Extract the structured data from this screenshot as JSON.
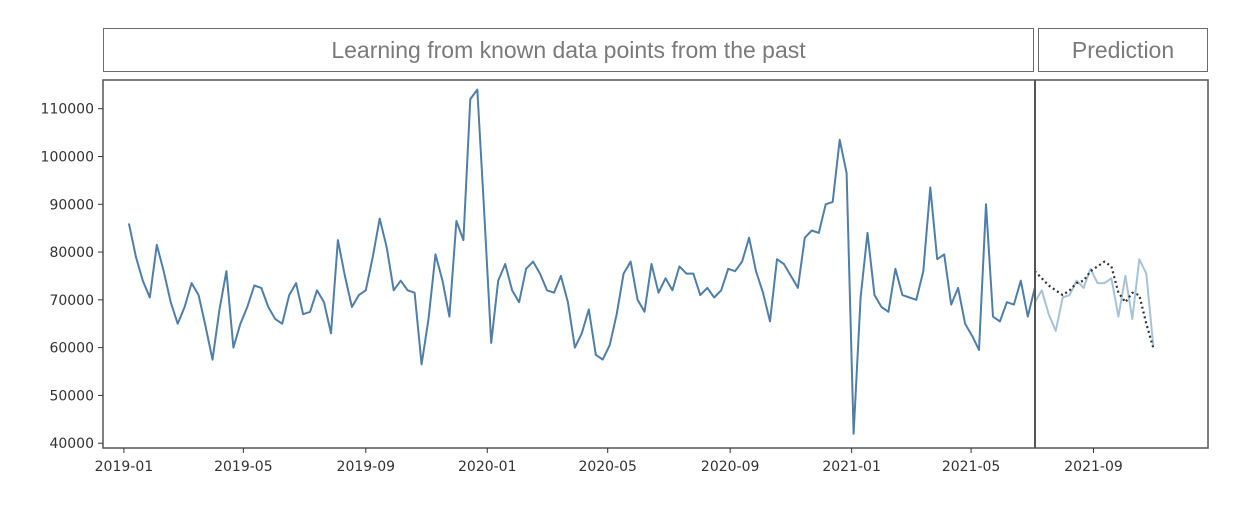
{
  "banners": {
    "learning": "Learning from known data points from the past",
    "prediction": "Prediction"
  },
  "chart_data": {
    "type": "line",
    "title": "",
    "xlabel": "",
    "ylabel": "",
    "ylim": [
      39000,
      116000
    ],
    "xlim": [
      "2018-12-11",
      "2021-12-25"
    ],
    "y_ticks": [
      40000,
      50000,
      60000,
      70000,
      80000,
      90000,
      100000,
      110000
    ],
    "x_ticks": [
      "2019-01",
      "2019-05",
      "2019-09",
      "2020-01",
      "2020-05",
      "2020-09",
      "2021-01",
      "2021-05",
      "2021-09"
    ],
    "prediction_start": "2021-07-01",
    "grid": false,
    "legend": "none",
    "series": [
      {
        "role": "history",
        "color": "#4f7ea8",
        "points": [
          [
            "2019-01-06",
            86000
          ],
          [
            "2019-01-13",
            79000
          ],
          [
            "2019-01-20",
            74000
          ],
          [
            "2019-01-27",
            70500
          ],
          [
            "2019-02-03",
            81500
          ],
          [
            "2019-02-10",
            76000
          ],
          [
            "2019-02-17",
            69500
          ],
          [
            "2019-02-24",
            65000
          ],
          [
            "2019-03-03",
            68500
          ],
          [
            "2019-03-10",
            73500
          ],
          [
            "2019-03-17",
            71000
          ],
          [
            "2019-03-24",
            64500
          ],
          [
            "2019-03-31",
            57500
          ],
          [
            "2019-04-07",
            68000
          ],
          [
            "2019-04-14",
            76000
          ],
          [
            "2019-04-21",
            60000
          ],
          [
            "2019-04-28",
            65000
          ],
          [
            "2019-05-05",
            68500
          ],
          [
            "2019-05-12",
            73000
          ],
          [
            "2019-05-19",
            72500
          ],
          [
            "2019-05-26",
            68500
          ],
          [
            "2019-06-02",
            66000
          ],
          [
            "2019-06-09",
            65000
          ],
          [
            "2019-06-16",
            71000
          ],
          [
            "2019-06-23",
            73500
          ],
          [
            "2019-06-30",
            67000
          ],
          [
            "2019-07-07",
            67500
          ],
          [
            "2019-07-14",
            72000
          ],
          [
            "2019-07-21",
            69500
          ],
          [
            "2019-07-28",
            63000
          ],
          [
            "2019-08-04",
            82500
          ],
          [
            "2019-08-11",
            75000
          ],
          [
            "2019-08-18",
            68500
          ],
          [
            "2019-08-25",
            71000
          ],
          [
            "2019-09-01",
            72000
          ],
          [
            "2019-09-08",
            79000
          ],
          [
            "2019-09-15",
            87000
          ],
          [
            "2019-09-22",
            81000
          ],
          [
            "2019-09-29",
            72000
          ],
          [
            "2019-10-06",
            74000
          ],
          [
            "2019-10-13",
            72000
          ],
          [
            "2019-10-20",
            71500
          ],
          [
            "2019-10-27",
            56500
          ],
          [
            "2019-11-03",
            66000
          ],
          [
            "2019-11-10",
            79500
          ],
          [
            "2019-11-17",
            74000
          ],
          [
            "2019-11-24",
            66500
          ],
          [
            "2019-12-01",
            86500
          ],
          [
            "2019-12-08",
            82500
          ],
          [
            "2019-12-15",
            112000
          ],
          [
            "2019-12-22",
            114000
          ],
          [
            "2019-12-29",
            88000
          ],
          [
            "2020-01-05",
            61000
          ],
          [
            "2020-01-12",
            74000
          ],
          [
            "2020-01-19",
            77500
          ],
          [
            "2020-01-26",
            72000
          ],
          [
            "2020-02-02",
            69500
          ],
          [
            "2020-02-09",
            76500
          ],
          [
            "2020-02-16",
            78000
          ],
          [
            "2020-02-23",
            75500
          ],
          [
            "2020-03-01",
            72000
          ],
          [
            "2020-03-08",
            71500
          ],
          [
            "2020-03-15",
            75000
          ],
          [
            "2020-03-22",
            69500
          ],
          [
            "2020-03-29",
            60000
          ],
          [
            "2020-04-05",
            63000
          ],
          [
            "2020-04-12",
            68000
          ],
          [
            "2020-04-19",
            58500
          ],
          [
            "2020-04-26",
            57500
          ],
          [
            "2020-05-03",
            60500
          ],
          [
            "2020-05-10",
            67000
          ],
          [
            "2020-05-17",
            75500
          ],
          [
            "2020-05-24",
            78000
          ],
          [
            "2020-05-31",
            70000
          ],
          [
            "2020-06-07",
            67500
          ],
          [
            "2020-06-14",
            77500
          ],
          [
            "2020-06-21",
            71500
          ],
          [
            "2020-06-28",
            74500
          ],
          [
            "2020-07-05",
            72000
          ],
          [
            "2020-07-12",
            77000
          ],
          [
            "2020-07-19",
            75500
          ],
          [
            "2020-07-26",
            75500
          ],
          [
            "2020-08-02",
            71000
          ],
          [
            "2020-08-09",
            72500
          ],
          [
            "2020-08-16",
            70500
          ],
          [
            "2020-08-23",
            72000
          ],
          [
            "2020-08-30",
            76500
          ],
          [
            "2020-09-06",
            76000
          ],
          [
            "2020-09-13",
            78000
          ],
          [
            "2020-09-20",
            83000
          ],
          [
            "2020-09-27",
            76000
          ],
          [
            "2020-10-04",
            71500
          ],
          [
            "2020-10-11",
            65500
          ],
          [
            "2020-10-18",
            78500
          ],
          [
            "2020-10-25",
            77500
          ],
          [
            "2020-11-01",
            75000
          ],
          [
            "2020-11-08",
            72500
          ],
          [
            "2020-11-15",
            83000
          ],
          [
            "2020-11-22",
            84500
          ],
          [
            "2020-11-29",
            84000
          ],
          [
            "2020-12-06",
            90000
          ],
          [
            "2020-12-13",
            90500
          ],
          [
            "2020-12-20",
            103500
          ],
          [
            "2020-12-27",
            96500
          ],
          [
            "2021-01-03",
            42000
          ],
          [
            "2021-01-10",
            70500
          ],
          [
            "2021-01-17",
            84000
          ],
          [
            "2021-01-24",
            71000
          ],
          [
            "2021-01-31",
            68500
          ],
          [
            "2021-02-07",
            67500
          ],
          [
            "2021-02-14",
            76500
          ],
          [
            "2021-02-21",
            71000
          ],
          [
            "2021-02-28",
            70500
          ],
          [
            "2021-03-07",
            70000
          ],
          [
            "2021-03-14",
            76000
          ],
          [
            "2021-03-21",
            93500
          ],
          [
            "2021-03-28",
            78500
          ],
          [
            "2021-04-04",
            79500
          ],
          [
            "2021-04-11",
            69000
          ],
          [
            "2021-04-18",
            72500
          ],
          [
            "2021-04-25",
            65000
          ],
          [
            "2021-05-02",
            62500
          ],
          [
            "2021-05-09",
            59500
          ],
          [
            "2021-05-16",
            90000
          ],
          [
            "2021-05-23",
            66500
          ],
          [
            "2021-05-30",
            65500
          ],
          [
            "2021-06-06",
            69500
          ],
          [
            "2021-06-13",
            69000
          ],
          [
            "2021-06-20",
            74000
          ],
          [
            "2021-06-27",
            66500
          ],
          [
            "2021-07-04",
            72500
          ]
        ]
      },
      {
        "role": "actual-future",
        "color": "#a7c3d9",
        "points": [
          [
            "2021-07-04",
            69500
          ],
          [
            "2021-07-11",
            72000
          ],
          [
            "2021-07-18",
            67000
          ],
          [
            "2021-07-25",
            63500
          ],
          [
            "2021-08-01",
            70500
          ],
          [
            "2021-08-08",
            71000
          ],
          [
            "2021-08-15",
            74000
          ],
          [
            "2021-08-22",
            72500
          ],
          [
            "2021-08-29",
            76500
          ],
          [
            "2021-09-05",
            73500
          ],
          [
            "2021-09-12",
            73500
          ],
          [
            "2021-09-19",
            74500
          ],
          [
            "2021-09-26",
            66500
          ],
          [
            "2021-10-03",
            75000
          ],
          [
            "2021-10-10",
            66000
          ],
          [
            "2021-10-17",
            78500
          ],
          [
            "2021-10-24",
            75500
          ],
          [
            "2021-10-31",
            60500
          ]
        ]
      },
      {
        "role": "forecast",
        "color": "#333333",
        "dotted": true,
        "points": [
          [
            "2021-07-04",
            76000
          ],
          [
            "2021-07-11",
            74500
          ],
          [
            "2021-07-18",
            73000
          ],
          [
            "2021-07-25",
            72000
          ],
          [
            "2021-08-01",
            71000
          ],
          [
            "2021-08-08",
            72000
          ],
          [
            "2021-08-15",
            73500
          ],
          [
            "2021-08-22",
            74000
          ],
          [
            "2021-08-29",
            76000
          ],
          [
            "2021-09-05",
            77000
          ],
          [
            "2021-09-12",
            78000
          ],
          [
            "2021-09-19",
            77000
          ],
          [
            "2021-09-26",
            71500
          ],
          [
            "2021-10-03",
            69500
          ],
          [
            "2021-10-10",
            71500
          ],
          [
            "2021-10-17",
            71000
          ],
          [
            "2021-10-24",
            65000
          ],
          [
            "2021-10-31",
            60000
          ]
        ]
      }
    ]
  }
}
